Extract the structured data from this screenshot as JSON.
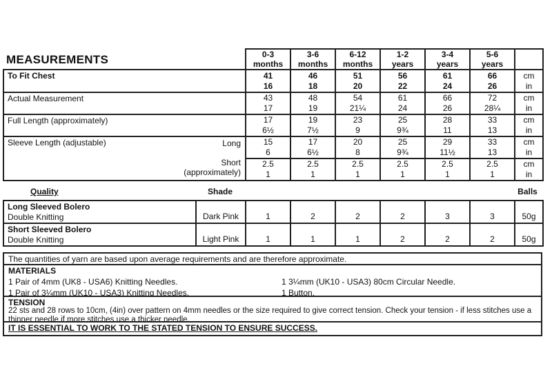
{
  "colors": {
    "ink": "#111111",
    "paper": "#ffffff",
    "border": "#1f1f1f"
  },
  "measurements": {
    "title": "MEASUREMENTS",
    "col_headers": [
      "0-3\nmonths",
      "3-6\nmonths",
      "6-12\nmonths",
      "1-2\nyears",
      "3-4\nyears",
      "5-6\nyears"
    ],
    "unit_cm": "cm",
    "unit_in": "in",
    "rows": [
      {
        "label": "To Fit Chest",
        "cm": [
          "41",
          "46",
          "51",
          "56",
          "61",
          "66"
        ],
        "in": [
          "16",
          "18",
          "20",
          "22",
          "24",
          "26"
        ]
      },
      {
        "label": "Actual Measurement",
        "cm": [
          "43",
          "48",
          "54",
          "61",
          "66",
          "72"
        ],
        "in": [
          "17",
          "19",
          "21¼",
          "24",
          "26",
          "28¼"
        ]
      },
      {
        "label": "Full Length (approximately)",
        "cm": [
          "17",
          "19",
          "23",
          "25",
          "28",
          "33"
        ],
        "in": [
          "6½",
          "7½",
          "9",
          "9¾",
          "11",
          "13"
        ]
      },
      {
        "label": "Sleeve Length (adjustable)",
        "sub_label": "Long",
        "cm": [
          "15",
          "17",
          "20",
          "25",
          "29",
          "33"
        ],
        "in": [
          "6",
          "6½",
          "8",
          "9¾",
          "11½",
          "13"
        ]
      },
      {
        "sub_label": "Short",
        "sub_label2": "(approximately)",
        "cm": [
          "2.5",
          "2.5",
          "2.5",
          "2.5",
          "2.5",
          "2.5"
        ],
        "in": [
          "1",
          "1",
          "1",
          "1",
          "1",
          "1"
        ]
      }
    ]
  },
  "yarn": {
    "headers": {
      "quality": "Quality",
      "shade": "Shade",
      "balls": "Balls"
    },
    "rows": [
      {
        "name": "Long Sleeved Bolero",
        "quality": "Double Knitting",
        "shade": "Dark Pink",
        "values": [
          "1",
          "2",
          "2",
          "2",
          "3",
          "3"
        ],
        "ball_size": "50g"
      },
      {
        "name": "Short Sleeved Bolero",
        "quality": "Double Knitting",
        "shade": "Light Pink",
        "values": [
          "1",
          "1",
          "1",
          "2",
          "2",
          "2"
        ],
        "ball_size": "50g"
      }
    ]
  },
  "notes": {
    "quantities": "The quantities of yarn are based upon average requirements and are therefore approximate.",
    "materials_title": "MATERIALS",
    "materials_left": [
      "1 Pair of 4mm (UK8 - USA6) Knitting Needles.",
      "1 Pair of 3¼mm (UK10 - USA3) Knitting Needles."
    ],
    "materials_right": [
      "1 3¼mm (UK10 - USA3) 80cm Circular Needle.",
      "1 Button."
    ],
    "tension_title": "TENSION",
    "tension_text": "22 sts and 28 rows to 10cm, (4in) over pattern on 4mm needles or the size required to give correct tension. Check your tension - if less stitches use a thinner needle if more stitches use a thicker needle.",
    "essential": "IT IS ESSENTIAL TO WORK TO THE STATED TENSION TO ENSURE SUCCESS."
  }
}
